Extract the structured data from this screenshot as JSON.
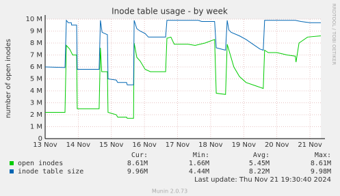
{
  "chart_data": {
    "type": "line",
    "title": "Inode table usage - by week",
    "y_label": "number of open inodes",
    "side_note": "RRDTOOL / TOBI OETIKER",
    "xlim": [
      13,
      21.33
    ],
    "xticks": [
      {
        "value": 13,
        "label": "13 Nov"
      },
      {
        "value": 14,
        "label": "14 Nov"
      },
      {
        "value": 15,
        "label": "15 Nov"
      },
      {
        "value": 16,
        "label": "16 Nov"
      },
      {
        "value": 17,
        "label": "17 Nov"
      },
      {
        "value": 18,
        "label": "18 Nov"
      },
      {
        "value": 19,
        "label": "19 Nov"
      },
      {
        "value": 20,
        "label": "20 Nov"
      },
      {
        "value": 21,
        "label": "21 Nov"
      }
    ],
    "ylim": [
      0,
      10
    ],
    "yticks": [
      0,
      {
        "value": 1,
        "label": "1 M"
      },
      {
        "value": 2,
        "label": "2 M"
      },
      {
        "value": 3,
        "label": "3 M"
      },
      {
        "value": 4,
        "label": "4 M"
      },
      {
        "value": 5,
        "label": "5 M"
      },
      {
        "value": 6,
        "label": "6 M"
      },
      {
        "value": 7,
        "label": "7 M"
      },
      {
        "value": 8,
        "label": "8 M"
      },
      {
        "value": 9,
        "label": "9 M"
      },
      {
        "value": 10,
        "label": "10 M"
      }
    ],
    "grid": true,
    "stat_headers": [
      "Cur:",
      "Min:",
      "Avg:",
      "Max:"
    ],
    "series": [
      {
        "name": "open inodes",
        "color": "#00cc00",
        "x": [
          13.0,
          13.6,
          13.64,
          13.74,
          13.83,
          13.95,
          13.97,
          14.63,
          14.67,
          14.71,
          14.88,
          14.9,
          15.15,
          15.19,
          15.46,
          15.48,
          15.67,
          15.69,
          15.77,
          15.87,
          16.02,
          16.18,
          16.64,
          16.68,
          16.8,
          16.9,
          17.32,
          17.53,
          17.83,
          18.12,
          18.17,
          18.45,
          18.5,
          18.7,
          18.87,
          19.07,
          19.38,
          19.59,
          19.63,
          19.74,
          20.0,
          20.31,
          20.56,
          20.58,
          20.67,
          20.93,
          21.33
        ],
        "values": [
          2.2,
          2.2,
          7.8,
          7.5,
          7.0,
          7.0,
          2.5,
          2.5,
          7.6,
          5.6,
          5.6,
          2.2,
          2.0,
          1.8,
          1.8,
          1.7,
          1.7,
          8.0,
          6.8,
          6.5,
          5.8,
          5.6,
          5.6,
          8.4,
          8.5,
          7.9,
          7.9,
          7.8,
          8.0,
          8.3,
          3.8,
          3.7,
          7.9,
          6.0,
          5.2,
          4.7,
          4.4,
          4.2,
          7.4,
          7.2,
          7.2,
          7.0,
          6.9,
          6.4,
          8.0,
          8.5,
          8.6
        ],
        "stats": [
          "8.61M",
          "1.66M",
          "5.45M",
          "8.61M"
        ]
      },
      {
        "name": "inode table size",
        "color": "#0066b3",
        "x": [
          13.0,
          13.6,
          13.64,
          13.7,
          13.79,
          13.8,
          13.95,
          13.97,
          14.63,
          14.67,
          14.72,
          14.88,
          14.9,
          15.15,
          15.19,
          15.46,
          15.48,
          15.67,
          15.69,
          15.77,
          15.87,
          16.02,
          16.12,
          16.64,
          16.68,
          17.63,
          17.73,
          18.12,
          18.17,
          18.45,
          18.5,
          18.55,
          18.62,
          18.87,
          19.07,
          19.28,
          19.49,
          19.59,
          19.63,
          20.56,
          20.73,
          21.0,
          21.33
        ],
        "values": [
          6.0,
          5.95,
          9.9,
          9.7,
          9.7,
          9.5,
          9.5,
          5.8,
          5.8,
          9.9,
          8.9,
          8.7,
          5.0,
          4.9,
          4.7,
          4.7,
          4.5,
          4.5,
          9.9,
          9.2,
          9.0,
          8.8,
          8.5,
          8.5,
          9.9,
          9.9,
          9.8,
          9.8,
          7.6,
          7.4,
          9.9,
          9.1,
          8.9,
          8.6,
          8.3,
          7.9,
          7.5,
          7.4,
          9.9,
          9.9,
          9.8,
          9.7,
          9.7
        ],
        "stats": [
          "9.96M",
          "4.44M",
          "8.22M",
          "9.98M"
        ]
      }
    ],
    "last_update": "Last update: Thu Nov 21 19:30:40 2024",
    "footer": "Munin 2.0.73"
  }
}
